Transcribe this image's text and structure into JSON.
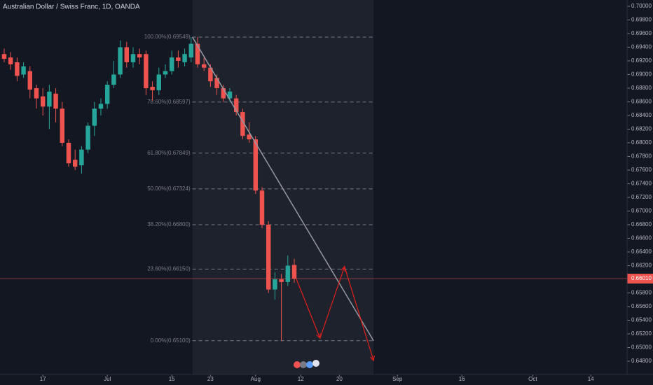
{
  "chart_data": {
    "type": "candlestick",
    "title": "Australian Dollar / Swiss Franc, 1D, OANDA",
    "up_color": "#26a69a",
    "down_color": "#ef5350",
    "open": [
      0.693,
      0.6925,
      0.6918,
      0.69,
      0.6905,
      0.688,
      0.6868,
      0.6853,
      0.6872,
      0.685,
      0.68,
      0.6775,
      0.6767,
      0.679,
      0.6825,
      0.685,
      0.6857,
      0.6885,
      0.69,
      0.694,
      0.6918,
      0.693,
      0.693,
      0.6882,
      0.6877,
      0.69,
      0.6905,
      0.6925,
      0.6918,
      0.6925,
      0.6945,
      0.6915,
      0.691,
      0.6895,
      0.688,
      0.6865,
      0.6865,
      0.6845,
      0.6812,
      0.6805,
      0.673,
      0.668,
      0.6585,
      0.66,
      0.6596,
      0.6621
    ],
    "high": [
      0.6938,
      0.6933,
      0.6925,
      0.6918,
      0.6912,
      0.6885,
      0.688,
      0.6885,
      0.688,
      0.686,
      0.6805,
      0.679,
      0.6795,
      0.683,
      0.686,
      0.6865,
      0.689,
      0.692,
      0.695,
      0.6948,
      0.694,
      0.6938,
      0.6935,
      0.689,
      0.691,
      0.6915,
      0.6935,
      0.6935,
      0.6938,
      0.6955,
      0.6955,
      0.6925,
      0.6915,
      0.69,
      0.6885,
      0.688,
      0.687,
      0.685,
      0.683,
      0.681,
      0.6735,
      0.6685,
      0.661,
      0.6608,
      0.6635,
      0.663
    ],
    "low": [
      0.6918,
      0.6907,
      0.689,
      0.6895,
      0.6865,
      0.685,
      0.684,
      0.682,
      0.683,
      0.6795,
      0.6765,
      0.676,
      0.6755,
      0.6785,
      0.681,
      0.684,
      0.685,
      0.688,
      0.6895,
      0.691,
      0.691,
      0.6915,
      0.687,
      0.6862,
      0.687,
      0.6895,
      0.69,
      0.691,
      0.6912,
      0.6918,
      0.691,
      0.6905,
      0.6882,
      0.687,
      0.686,
      0.686,
      0.684,
      0.6805,
      0.68,
      0.6725,
      0.6675,
      0.658,
      0.657,
      0.651,
      0.659,
      0.6595
    ],
    "close": [
      0.6923,
      0.6915,
      0.6898,
      0.6912,
      0.6878,
      0.6865,
      0.6853,
      0.6875,
      0.685,
      0.68,
      0.677,
      0.6765,
      0.679,
      0.6825,
      0.685,
      0.6857,
      0.6885,
      0.69,
      0.694,
      0.6918,
      0.693,
      0.6925,
      0.688,
      0.6877,
      0.69,
      0.6905,
      0.6925,
      0.692,
      0.693,
      0.6945,
      0.6915,
      0.691,
      0.689,
      0.688,
      0.6865,
      0.6875,
      0.6845,
      0.681,
      0.6805,
      0.673,
      0.668,
      0.6585,
      0.66,
      0.6596,
      0.662,
      0.6601
    ],
    "xlim": [
      -0.65,
      96.63
    ],
    "ylim": [
      0.64605,
      0.70092
    ],
    "xticks": [
      {
        "value": 6,
        "label": "17"
      },
      {
        "value": 16,
        "label": "Jul"
      },
      {
        "value": 26,
        "label": "15"
      },
      {
        "value": 32,
        "label": "23"
      },
      {
        "value": 39,
        "label": "Aug"
      },
      {
        "value": 46,
        "label": "12"
      },
      {
        "value": 52,
        "label": "20"
      },
      {
        "value": 61,
        "label": "Sep"
      },
      {
        "value": 71,
        "label": "16"
      },
      {
        "value": 82,
        "label": "Oct"
      },
      {
        "value": 91,
        "label": "14"
      }
    ],
    "yticks": [
      {
        "value": 0.7,
        "label": "0.70000"
      },
      {
        "value": 0.698,
        "label": "0.69800"
      },
      {
        "value": 0.696,
        "label": "0.69600"
      },
      {
        "value": 0.694,
        "label": "0.69400"
      },
      {
        "value": 0.692,
        "label": "0.69200"
      },
      {
        "value": 0.69,
        "label": "0.69000"
      },
      {
        "value": 0.688,
        "label": "0.68800"
      },
      {
        "value": 0.686,
        "label": "0.68600"
      },
      {
        "value": 0.684,
        "label": "0.68400"
      },
      {
        "value": 0.682,
        "label": "0.68200"
      },
      {
        "value": 0.68,
        "label": "0.68000"
      },
      {
        "value": 0.678,
        "label": "0.67800"
      },
      {
        "value": 0.676,
        "label": "0.67600"
      },
      {
        "value": 0.674,
        "label": "0.67400"
      },
      {
        "value": 0.672,
        "label": "0.67200"
      },
      {
        "value": 0.67,
        "label": "0.67000"
      },
      {
        "value": 0.668,
        "label": "0.66800"
      },
      {
        "value": 0.666,
        "label": "0.66600"
      },
      {
        "value": 0.664,
        "label": "0.66400"
      },
      {
        "value": 0.662,
        "label": "0.66200"
      },
      {
        "value": 0.66,
        "label": "0.66000"
      },
      {
        "value": 0.658,
        "label": "0.65800"
      },
      {
        "value": 0.656,
        "label": "0.65600"
      },
      {
        "value": 0.654,
        "label": "0.65400"
      },
      {
        "value": 0.652,
        "label": "0.65200"
      },
      {
        "value": 0.65,
        "label": "0.65000"
      },
      {
        "value": 0.648,
        "label": "0.64800"
      }
    ],
    "current_price": {
      "value": 0.6601,
      "label": "0.66010"
    },
    "fib_x": [
      29.2,
      57.3
    ],
    "fib_levels": [
      {
        "value": 0.69549,
        "label": "100.00%(0.69549)"
      },
      {
        "value": 0.68597,
        "label": "78.60%(0.68597)"
      },
      {
        "value": 0.67849,
        "label": "61.80%(0.67849)"
      },
      {
        "value": 0.67324,
        "label": "50.00%(0.67324)"
      },
      {
        "value": 0.668,
        "label": "38.20%(0.66800)"
      },
      {
        "value": 0.6615,
        "label": "23.60%(0.66150)"
      },
      {
        "value": 0.651,
        "label": "0.00%(0.65100)"
      }
    ],
    "trend_line": {
      "x": [
        29.2,
        57.3
      ],
      "y": [
        0.69549,
        0.651
      ]
    },
    "projection": {
      "x": [
        45.3,
        49.0,
        52.8,
        57.3
      ],
      "y": [
        0.6601,
        0.65138,
        0.66185,
        0.6481
      ]
    }
  }
}
